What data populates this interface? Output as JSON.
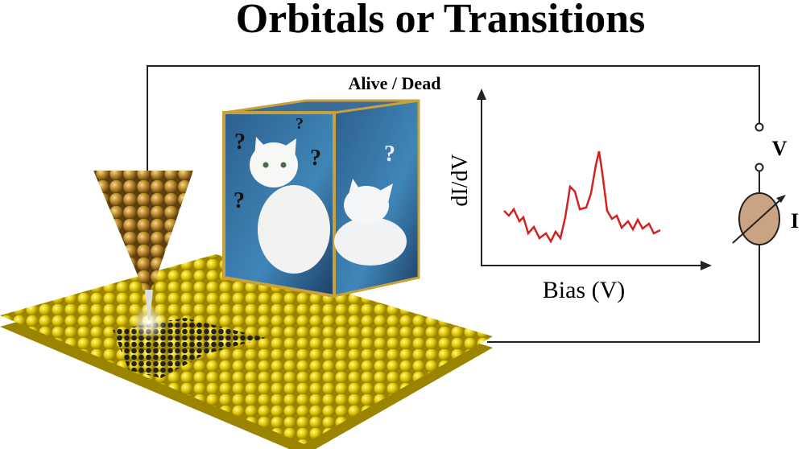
{
  "title": "Orbitals or Transitions",
  "box_label": "Alive / Dead",
  "plot": {
    "y_label": "dI/dV",
    "x_label": "Bias (V)"
  },
  "circuit": {
    "voltage": "V",
    "current": "I"
  },
  "question_marks": [
    "?",
    "?",
    "?",
    "?",
    "?"
  ]
}
